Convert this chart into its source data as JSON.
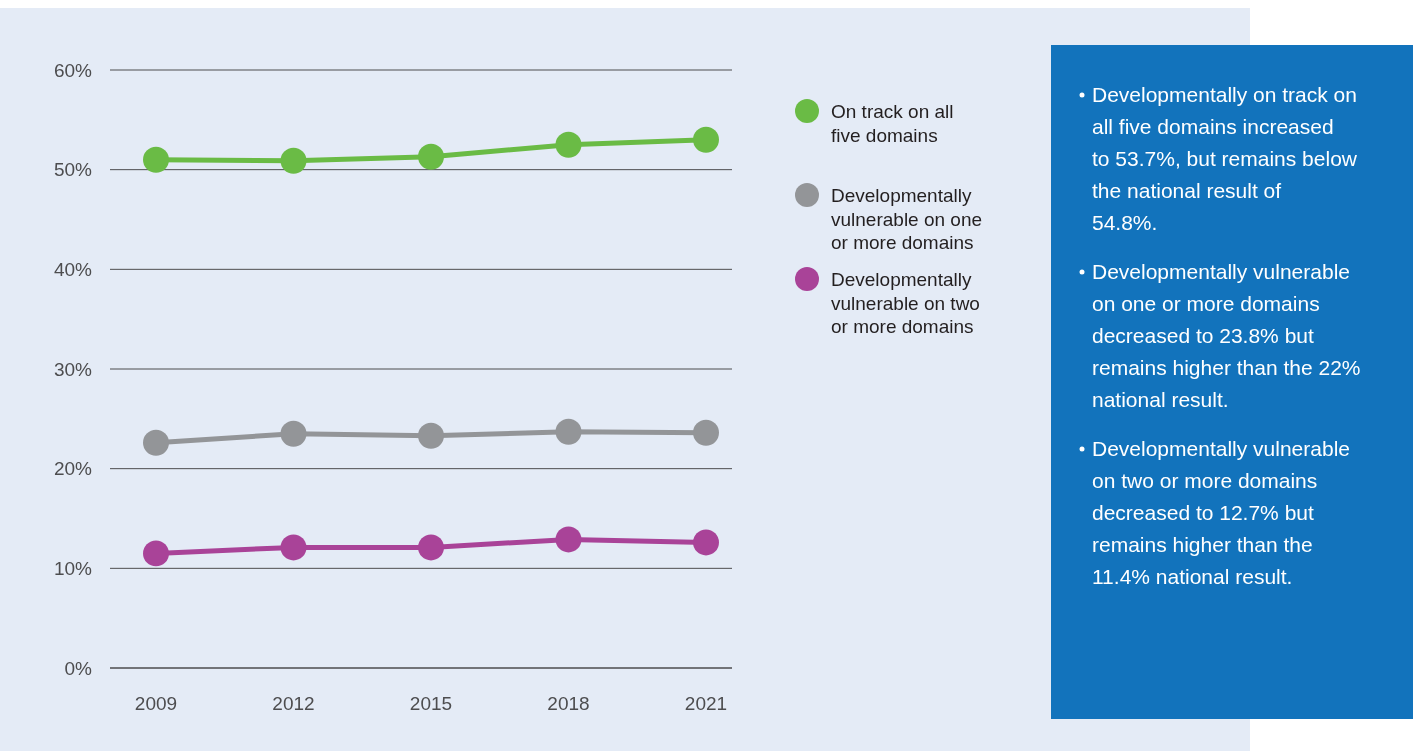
{
  "chart_data": {
    "type": "line",
    "categories": [
      "2009",
      "2012",
      "2015",
      "2018",
      "2021"
    ],
    "series": [
      {
        "name": "On track on all five domains",
        "color": "#6abb45",
        "values": [
          51.0,
          50.9,
          51.3,
          52.5,
          53.0
        ]
      },
      {
        "name": "Developmentally vulnerable on one or more domains",
        "color": "#939598",
        "values": [
          22.6,
          23.5,
          23.3,
          23.7,
          23.6
        ]
      },
      {
        "name": "Developmentally vulnerable on two or more domains",
        "color": "#a94398",
        "values": [
          11.5,
          12.1,
          12.1,
          12.9,
          12.6
        ]
      }
    ],
    "ylim": [
      0,
      60
    ],
    "yticks": [
      {
        "value": 0,
        "label": "0%"
      },
      {
        "value": 10,
        "label": "10%"
      },
      {
        "value": 20,
        "label": "20%"
      },
      {
        "value": 30,
        "label": "30%"
      },
      {
        "value": 40,
        "label": "40%"
      },
      {
        "value": 50,
        "label": "50%"
      },
      {
        "value": 60,
        "label": "60%"
      }
    ],
    "grid": "y",
    "legend": "right",
    "marker": "circle",
    "line_style": "solid",
    "annotations": [
      "Developmentally on track on all five domains increased to 53.7%, but remains below the national result of 54.8%.",
      "Developmentally vulnerable on one or more domains decreased to 23.8% but remains higher than the 22% national result.",
      "Developmentally vulnerable on two or more domains decreased to 12.7% but remains higher than the 11.4% national result."
    ]
  }
}
